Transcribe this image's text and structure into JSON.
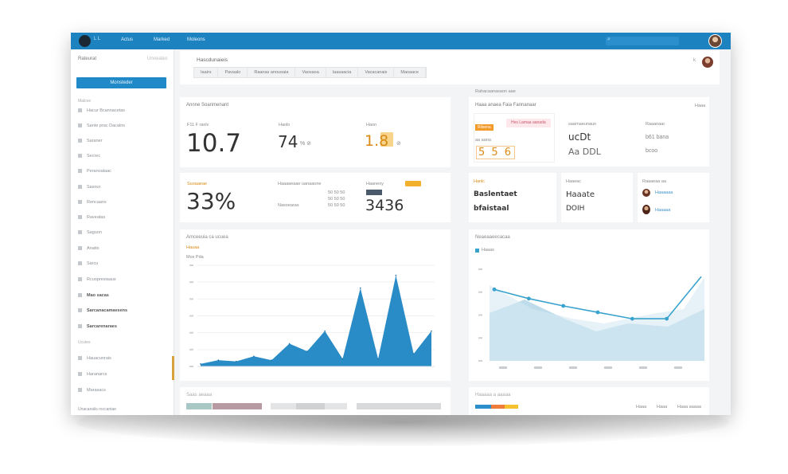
{
  "topbar": {
    "logo_text": "L L",
    "nav": [
      "Actus",
      "Marked",
      "Moleons"
    ]
  },
  "sidebar": {
    "header": "Rateurat",
    "header_right": "Unreiates",
    "button": "Monsteder",
    "sub": "Malcoe",
    "items": [
      {
        "label": "Hacur Bcannacetas",
        "bold": false
      },
      {
        "label": "Sante prac Dacalns",
        "bold": false
      },
      {
        "label": "Saraner",
        "bold": false
      },
      {
        "label": "Secrec",
        "bold": false
      },
      {
        "label": "Peranoalaac",
        "bold": false
      },
      {
        "label": "Sasour",
        "bold": false
      },
      {
        "label": "Rencaans",
        "bold": false
      },
      {
        "label": "Raveatas",
        "bold": false
      },
      {
        "label": "Saguon",
        "bold": false
      },
      {
        "label": "Anatio",
        "bold": false
      },
      {
        "label": "Sarcu",
        "bold": false
      },
      {
        "label": "Rcuopresiaaus",
        "bold": false
      },
      {
        "label": "Mao sacas",
        "bold": true
      },
      {
        "label": "Sarcanacamaesens",
        "bold": true
      },
      {
        "label": "Sarcarenaraes",
        "bold": true
      }
    ],
    "section2": "Ucutes",
    "items2": [
      {
        "label": "Hauacunrais"
      },
      {
        "label": "Haranarcs"
      },
      {
        "label": "Marasacs"
      }
    ],
    "footer": "Unacanalis roccantae"
  },
  "page": {
    "title": "Hascdunaieis",
    "tabs": [
      "Iaairs",
      "Pavaalo",
      "Raanas anouoaia",
      "Vaosaoa",
      "Iaasaacia",
      "Vacacanais",
      "Maoaace"
    ]
  },
  "stats": {
    "header": "Annne Soanmenant",
    "items": [
      {
        "label": "F11 F ranlv",
        "value": "10.7",
        "suffix": ""
      },
      {
        "label": "Haoln",
        "value": "74",
        "suffix": "% ⊘"
      },
      {
        "label": "Haon",
        "value": "1.8",
        "suffix": "⊘"
      }
    ],
    "percent_label": "Suoaaeae",
    "percent_value": "33%",
    "mid_label_1": "Haaaaeaae uanaaone",
    "mid_label_2": "Nasoearas",
    "mid_vals": [
      "50  50  50",
      "50  50  50",
      "50  50  50"
    ],
    "small_label": "Haaneoy",
    "small_value": "3436"
  },
  "right_panel": {
    "header": "Haaa anaea Faia Fannanaar",
    "header_2": "Rahacaanasaon aae",
    "header_right": "Haaa",
    "badge": "Rilsena",
    "pink": "Hes Lamaa aanada",
    "nums_left": "5  5  6",
    "lbl_1": "saarnaeunaun",
    "lbl_1_val": "bcoo",
    "lbl_2": "Raaanaar",
    "lbl_2_val": "b61  bana",
    "lbl_3": "aa  aana",
    "mid_val_1": "ucDt",
    "mid_val_2": "Aa DDL",
    "mid_val_3": "Haa",
    "bottom_header_1": "Hanlc",
    "bottom_val_1": "Baslentaet",
    "bottom_val_2": "bfaistaal",
    "bottom_header_2": "Haaeac",
    "bottom_val_3": "Haaate",
    "bottom_val_4": "DOIH",
    "bottom_header_3": "Raaaeaa aa",
    "contact_1": "Haaaaaa",
    "contact_2": "Haaaaa"
  },
  "chart_left": {
    "header": "Amceeuia ca ucuea",
    "legend": "Hauaa",
    "subtitle": "Mox Pda"
  },
  "chart_right": {
    "header": "Neaeaaeecacaa",
    "legend": "Haaas"
  },
  "bottom": {
    "left_header": "Saas   aeaaa",
    "right_header": "Haaaaa a  aaaaa",
    "right_labels": [
      "Haaa",
      "Haaa",
      "Haaa aaaaa"
    ]
  },
  "chart_data": [
    {
      "type": "area",
      "title": "",
      "categories": [
        "",
        "",
        "",
        "",
        "",
        "",
        "",
        "",
        "",
        "",
        "",
        "",
        "",
        ""
      ],
      "series": [
        {
          "values": [
            2,
            5,
            4,
            8,
            5,
            18,
            12,
            28,
            6,
            62,
            6,
            72,
            10,
            28
          ]
        }
      ]
    },
    {
      "type": "line",
      "title": "",
      "categories": [
        "",
        "",
        "",
        "",
        "",
        "",
        ""
      ],
      "series": [
        {
          "values": [
            78,
            68,
            60,
            53,
            46,
            46,
            92
          ]
        }
      ]
    }
  ]
}
